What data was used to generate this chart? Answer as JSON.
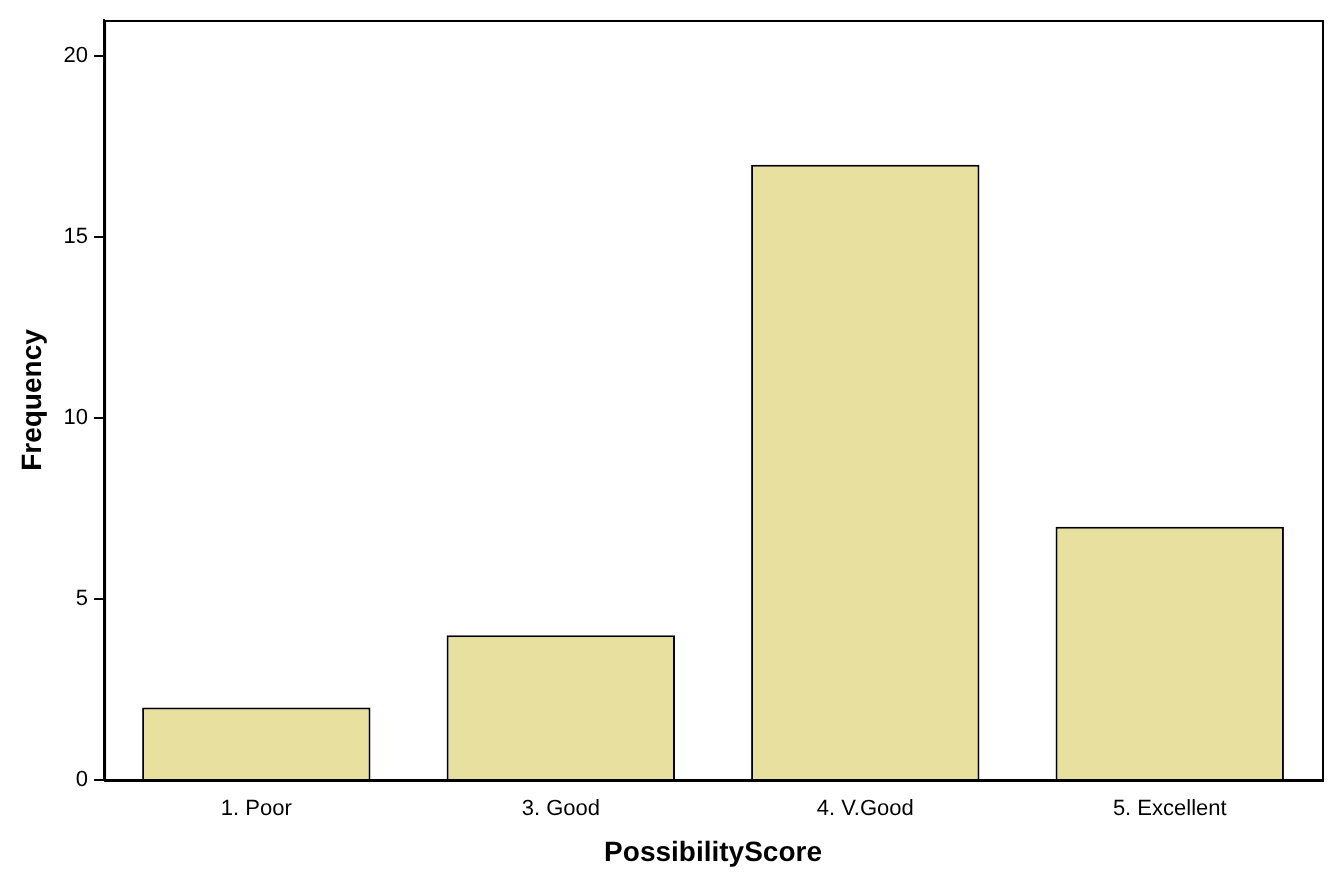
{
  "chart_data": {
    "type": "bar",
    "xlabel": "PossibilityScore",
    "ylabel": "Frequency",
    "categories": [
      "1. Poor",
      "3. Good",
      "4. V.Good",
      "5. Excellent"
    ],
    "values": [
      2,
      4,
      17,
      7
    ],
    "color": "#e8e09e",
    "ylim": [
      0,
      21
    ],
    "yticks": [
      0,
      5,
      10,
      15,
      20
    ],
    "grid": false,
    "legend": false
  }
}
